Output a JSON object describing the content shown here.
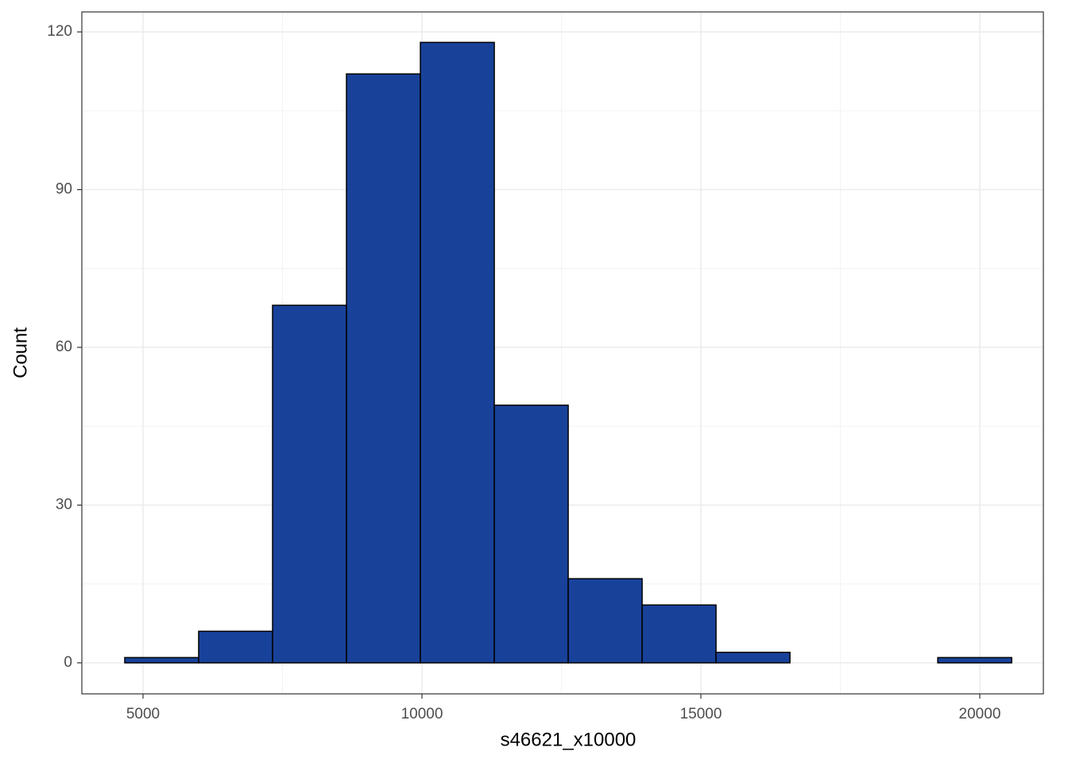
{
  "chart_data": {
    "type": "histogram",
    "x_label": "s46621_x10000",
    "y_label": "Count",
    "bins": [
      4672,
      5997,
      7322,
      8647,
      9972,
      11297,
      12622,
      13947,
      15272,
      16597,
      17922,
      19247,
      20572
    ],
    "counts": [
      1,
      6,
      68,
      112,
      118,
      49,
      16,
      11,
      2,
      0,
      0,
      1
    ],
    "color": "#18429a",
    "edge_color": "#000000",
    "xlim": [
      3903,
      21140
    ],
    "ylim": [
      -5.9,
      123.8
    ],
    "xticks": [
      5000,
      10000,
      15000,
      20000
    ],
    "yticks": [
      0,
      30,
      60,
      90,
      120
    ],
    "minor_xticks": [
      7500,
      12500,
      17500
    ],
    "minor_yticks": [
      15,
      45,
      75,
      105
    ],
    "grid": true
  }
}
